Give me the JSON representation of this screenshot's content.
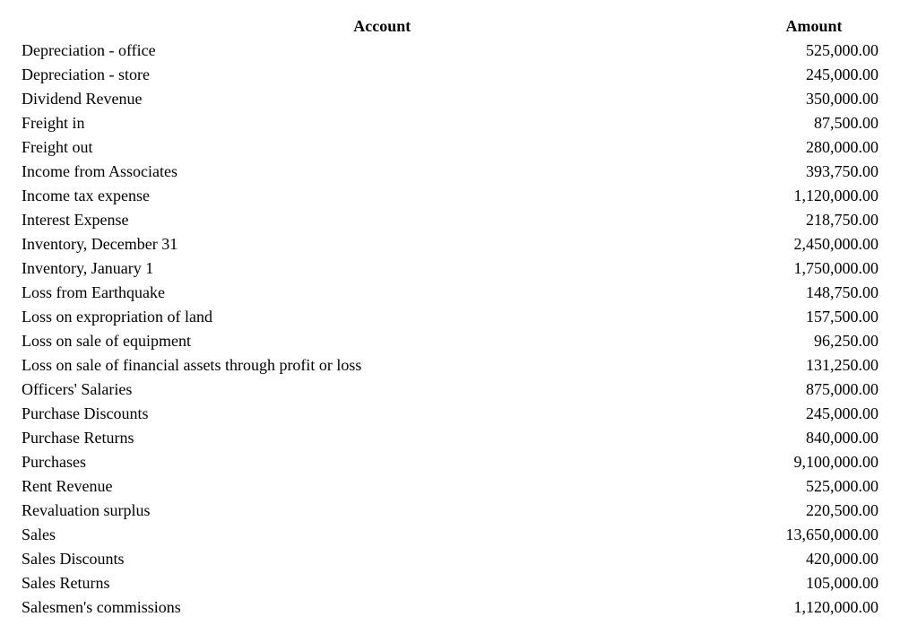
{
  "header": {
    "account": "Account",
    "amount": "Amount"
  },
  "rows": [
    {
      "account": "Depreciation - office",
      "amount": "525,000.00"
    },
    {
      "account": "Depreciation - store",
      "amount": "245,000.00"
    },
    {
      "account": "Dividend Revenue",
      "amount": "350,000.00"
    },
    {
      "account": "Freight in",
      "amount": "87,500.00"
    },
    {
      "account": "Freight out",
      "amount": "280,000.00"
    },
    {
      "account": "Income from Associates",
      "amount": "393,750.00"
    },
    {
      "account": "Income tax expense",
      "amount": "1,120,000.00"
    },
    {
      "account": "Interest Expense",
      "amount": "218,750.00"
    },
    {
      "account": "Inventory, December 31",
      "amount": "2,450,000.00"
    },
    {
      "account": "Inventory, January 1",
      "amount": "1,750,000.00"
    },
    {
      "account": "Loss from Earthquake",
      "amount": "148,750.00"
    },
    {
      "account": "Loss on expropriation of land",
      "amount": "157,500.00"
    },
    {
      "account": "Loss on sale of equipment",
      "amount": "96,250.00"
    },
    {
      "account": "Loss on sale of financial assets through profit or loss",
      "amount": "131,250.00"
    },
    {
      "account": "Officers' Salaries",
      "amount": "875,000.00"
    },
    {
      "account": "Purchase Discounts",
      "amount": "245,000.00"
    },
    {
      "account": "Purchase Returns",
      "amount": "840,000.00"
    },
    {
      "account": "Purchases",
      "amount": "9,100,000.00"
    },
    {
      "account": "Rent Revenue",
      "amount": "525,000.00"
    },
    {
      "account": "Revaluation surplus",
      "amount": "220,500.00"
    },
    {
      "account": "Sales",
      "amount": "13,650,000.00"
    },
    {
      "account": "Sales Discounts",
      "amount": "420,000.00"
    },
    {
      "account": "Sales Returns",
      "amount": "105,000.00"
    },
    {
      "account": "Salesmen's commissions",
      "amount": "1,120,000.00"
    }
  ]
}
